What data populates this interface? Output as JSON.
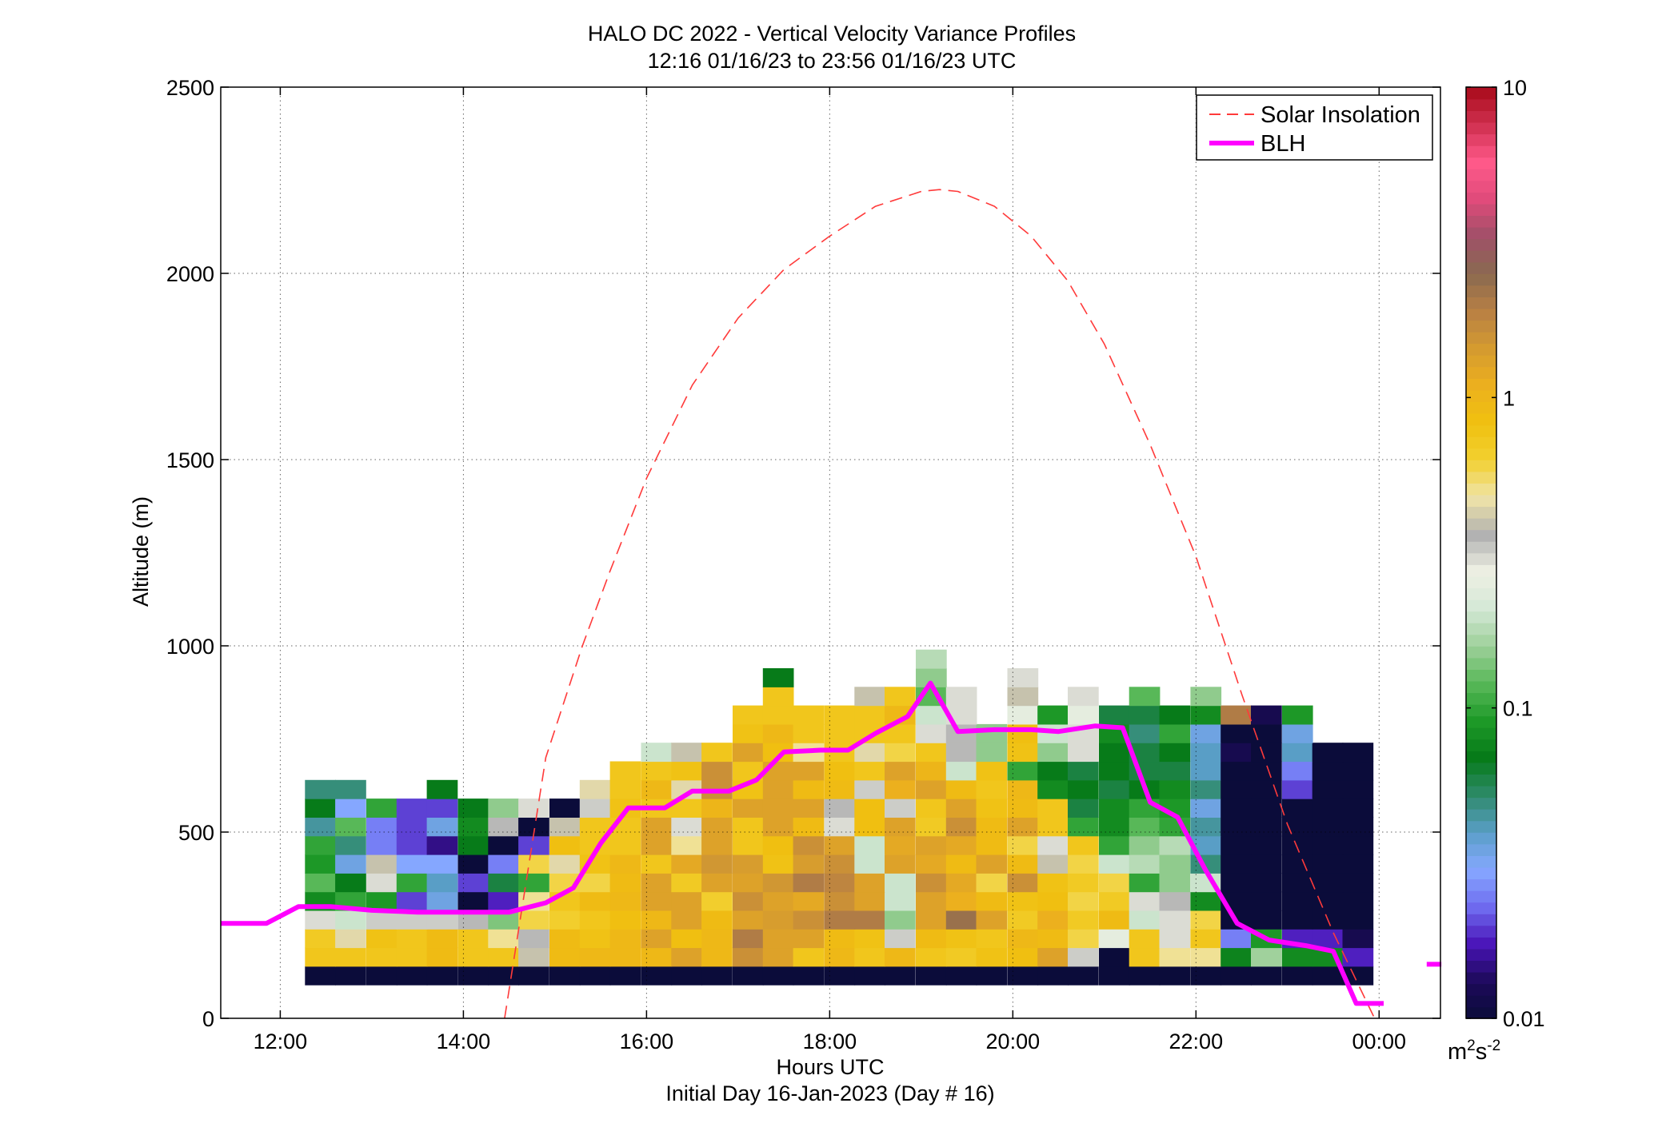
{
  "chart_data": {
    "type": "heatmap",
    "title": "HALO DC 2022 - Vertical Velocity Variance Profiles",
    "subtitle": "12:16 01/16/23 to 23:56 01/16/23  UTC",
    "xlabel": "Hours UTC",
    "xlabel2": "Initial Day 16-Jan-2023 (Day # 16)",
    "ylabel": "Altitude (m)",
    "x_unit": "hours UTC",
    "xlim": [
      11.35,
      24.67
    ],
    "ylim": [
      0,
      2500
    ],
    "x_ticks": [
      {
        "value": 12,
        "label": "12:00"
      },
      {
        "value": 14,
        "label": "14:00"
      },
      {
        "value": 16,
        "label": "16:00"
      },
      {
        "value": 18,
        "label": "18:00"
      },
      {
        "value": 20,
        "label": "20:00"
      },
      {
        "value": 22,
        "label": "22:00"
      },
      {
        "value": 24,
        "label": "00:00"
      }
    ],
    "y_ticks": [
      {
        "value": 0,
        "label": "0"
      },
      {
        "value": 500,
        "label": "500"
      },
      {
        "value": 1000,
        "label": "1000"
      },
      {
        "value": 1500,
        "label": "1500"
      },
      {
        "value": 2000,
        "label": "2000"
      },
      {
        "value": 2500,
        "label": "2500"
      }
    ],
    "grid": true,
    "legend_position": "top-right",
    "colorbar": {
      "label_base": "m",
      "label_sup1": "2",
      "label_mid": "s",
      "label_sup2": "-2",
      "scale": "log",
      "range": [
        0.01,
        10
      ],
      "ticks": [
        {
          "value": 0.01,
          "label": "0.01"
        },
        {
          "value": 0.1,
          "label": "0.1"
        },
        {
          "value": 1,
          "label": "1"
        },
        {
          "value": 10,
          "label": "10"
        }
      ],
      "colormap": [
        "#0b0c3a",
        "#1d0a5a",
        "#4a14b8",
        "#6f6cf0",
        "#86a8ff",
        "#5a9ec8",
        "#2e8a6a",
        "#067a18",
        "#1e9a28",
        "#58b858",
        "#9ed09a",
        "#d4e8d6",
        "#eef0e4",
        "#b0b0b0",
        "#f0e4a8",
        "#f2d030",
        "#f0c010",
        "#ecb01e",
        "#d49a30",
        "#b88044",
        "#8a6a50",
        "#a05068",
        "#e04a7a",
        "#ff5a8a",
        "#d03050",
        "#a80a1a"
      ]
    },
    "row_centers_m": [
      115,
      165,
      215,
      265,
      315,
      365,
      415,
      465,
      515,
      565,
      615,
      665,
      715,
      765,
      815,
      865,
      915,
      965
    ],
    "column_starts_h": [
      12.27,
      12.6,
      12.94,
      13.27,
      13.6,
      13.94,
      14.27,
      14.6,
      14.94,
      15.27,
      15.6,
      15.94,
      16.27,
      16.6,
      16.94,
      17.27,
      17.6,
      17.94,
      18.27,
      18.6,
      18.94,
      19.27,
      19.6,
      19.94,
      20.27,
      20.6,
      20.94,
      21.27,
      21.6,
      21.94,
      22.27,
      22.6,
      22.94,
      23.27,
      23.6
    ],
    "column_width_h": 0.333,
    "series": [
      {
        "name": "Solar Insolation",
        "style": "dashed",
        "color": "#ff3a3a",
        "x": [
          14.45,
          14.9,
          15.3,
          15.6,
          16.0,
          16.5,
          17.0,
          17.5,
          18.0,
          18.5,
          19.0,
          19.2,
          19.4,
          19.8,
          20.2,
          20.6,
          21.0,
          21.5,
          22.0,
          22.5,
          23.0,
          23.5,
          23.95
        ],
        "y": [
          0,
          700,
          1000,
          1200,
          1450,
          1700,
          1880,
          2010,
          2100,
          2180,
          2220,
          2225,
          2220,
          2180,
          2100,
          1980,
          1810,
          1540,
          1240,
          870,
          520,
          230,
          0
        ]
      },
      {
        "name": "BLH",
        "style": "solid",
        "color": "#ff00ff",
        "x": [
          11.35,
          11.85,
          12.2,
          12.55,
          13.0,
          13.5,
          14.0,
          14.5,
          14.9,
          15.2,
          15.5,
          15.8,
          16.2,
          16.5,
          16.9,
          17.2,
          17.5,
          17.9,
          18.2,
          18.5,
          18.85,
          19.1,
          19.4,
          19.8,
          20.2,
          20.5,
          20.9,
          21.2,
          21.5,
          21.8,
          22.1,
          22.45,
          22.8,
          23.2,
          23.5,
          23.75,
          24.05
        ],
        "y": [
          255,
          255,
          300,
          300,
          290,
          285,
          285,
          285,
          310,
          350,
          470,
          565,
          565,
          610,
          610,
          640,
          715,
          720,
          720,
          765,
          810,
          900,
          770,
          775,
          775,
          770,
          785,
          780,
          580,
          540,
          400,
          255,
          210,
          195,
          180,
          40,
          40
        ]
      }
    ],
    "extra_blh_mark": {
      "x": [
        24.52,
        24.68
      ],
      "y": [
        145,
        145
      ]
    },
    "cells": [
      [
        0.01,
        0.01,
        0.01,
        0.01,
        0.01,
        0.01,
        0.01,
        0.01,
        0.01,
        0.01,
        0.01,
        0.01,
        0.01,
        0.01,
        0.01,
        0.01,
        0.01,
        0.01,
        0.01,
        0.01,
        0.01,
        0.01,
        0.01,
        0.01,
        0.01,
        0.01,
        0.01,
        0.01,
        0.01,
        0.01,
        0.01,
        0.01,
        0.01,
        0.01,
        0.01
      ],
      [
        0.75,
        0.75,
        0.75,
        0.75,
        0.9,
        0.75,
        0.75,
        0.4,
        0.9,
        0.95,
        0.95,
        0.95,
        1.3,
        0.95,
        1.6,
        1.3,
        0.75,
        0.95,
        0.75,
        0.95,
        0.75,
        0.7,
        0.8,
        0.85,
        1.3,
        0.32,
        0.01,
        0.75,
        0.5,
        0.5,
        0.075,
        0.16,
        0.08,
        0.08,
        0.018
      ],
      [
        0.7,
        0.45,
        0.8,
        0.75,
        0.9,
        0.75,
        0.5,
        0.35,
        0.9,
        0.8,
        0.95,
        1.3,
        0.85,
        0.95,
        2.0,
        1.3,
        1.3,
        0.9,
        0.8,
        0.32,
        0.9,
        0.8,
        0.75,
        0.95,
        0.9,
        0.6,
        0.25,
        0.75,
        0.3,
        0.75,
        0.025,
        0.09,
        0.018,
        0.018,
        0.012
      ],
      [
        0.3,
        0.2,
        0.32,
        0.32,
        0.32,
        0.35,
        0.14,
        0.6,
        0.65,
        0.75,
        0.85,
        0.95,
        1.3,
        0.9,
        1.3,
        1.4,
        1.6,
        2.0,
        2.0,
        0.15,
        1.3,
        2.3,
        1.3,
        0.7,
        1.1,
        0.7,
        0.9,
        0.2,
        0.3,
        0.6,
        0.01,
        0.01,
        0.01,
        0.01,
        0.01
      ],
      [
        0.08,
        0.1,
        0.09,
        0.02,
        0.035,
        0.01,
        0.018,
        0.5,
        0.75,
        0.9,
        0.95,
        1.3,
        1.3,
        0.65,
        1.6,
        1.3,
        1.2,
        1.6,
        1.3,
        0.2,
        1.3,
        1.1,
        0.9,
        0.8,
        0.85,
        0.6,
        0.7,
        0.3,
        0.35,
        0.08,
        0.01,
        0.01,
        0.01,
        0.01,
        0.01
      ],
      [
        0.12,
        0.07,
        0.3,
        0.1,
        0.04,
        0.02,
        0.06,
        0.1,
        0.6,
        0.6,
        0.9,
        1.3,
        0.7,
        1.3,
        1.3,
        1.5,
        2.0,
        1.8,
        1.3,
        0.2,
        1.6,
        1.2,
        0.6,
        1.6,
        0.8,
        0.7,
        0.6,
        0.1,
        0.15,
        0.2,
        0.01,
        0.01,
        0.01,
        0.01,
        0.01
      ],
      [
        0.09,
        0.035,
        0.4,
        0.03,
        0.03,
        0.01,
        0.025,
        0.6,
        0.45,
        0.8,
        0.95,
        0.75,
        1.2,
        1.5,
        1.4,
        0.8,
        1.4,
        1.6,
        0.2,
        1.3,
        1.2,
        0.9,
        1.3,
        0.9,
        0.4,
        0.6,
        0.2,
        0.18,
        0.15,
        0.05,
        0.01,
        0.01,
        0.01,
        0.01,
        0.01
      ],
      [
        0.1,
        0.05,
        0.025,
        0.02,
        0.015,
        0.07,
        0.01,
        0.02,
        0.85,
        0.75,
        0.75,
        1.3,
        0.5,
        1.3,
        0.75,
        0.85,
        1.6,
        1.3,
        0.2,
        1.2,
        1.3,
        1.2,
        0.9,
        0.6,
        0.3,
        0.75,
        0.1,
        0.15,
        0.18,
        0.04,
        0.01,
        0.01,
        0.01,
        0.01,
        0.01
      ],
      [
        0.045,
        0.12,
        0.025,
        0.02,
        0.035,
        0.08,
        0.35,
        0.01,
        0.4,
        0.75,
        0.75,
        1.3,
        0.3,
        1.3,
        0.75,
        1.3,
        0.9,
        0.3,
        0.85,
        1.3,
        0.7,
        1.6,
        0.9,
        1.3,
        0.75,
        0.1,
        0.08,
        0.12,
        0.1,
        0.045,
        0.01,
        0.01,
        0.01,
        0.01,
        0.01
      ],
      [
        0.07,
        0.03,
        0.1,
        0.02,
        0.02,
        0.07,
        0.15,
        0.3,
        0.01,
        0.32,
        0.8,
        0.75,
        0.75,
        1.0,
        1.3,
        1.3,
        1.3,
        0.35,
        0.85,
        0.32,
        0.75,
        1.3,
        0.8,
        0.9,
        0.75,
        0.06,
        0.08,
        0.1,
        0.09,
        0.035,
        0.01,
        0.01,
        0.01,
        0.01,
        0.01
      ],
      [
        0.05,
        0.05,
        null,
        null,
        0.07,
        null,
        null,
        null,
        null,
        0.45,
        0.75,
        0.95,
        0.45,
        1.6,
        0.8,
        1.3,
        0.9,
        0.9,
        0.32,
        1.1,
        1.3,
        0.9,
        0.75,
        0.95,
        0.08,
        0.07,
        0.06,
        0.07,
        0.08,
        0.05,
        0.01,
        0.01,
        0.02,
        0.01,
        0.01
      ],
      [
        null,
        null,
        null,
        null,
        null,
        null,
        null,
        null,
        null,
        null,
        0.75,
        0.75,
        0.8,
        1.6,
        0.75,
        1.3,
        1.3,
        0.85,
        0.75,
        1.3,
        1.0,
        0.2,
        0.8,
        0.1,
        0.07,
        0.06,
        0.07,
        0.06,
        0.06,
        0.04,
        0.01,
        0.01,
        0.025,
        0.01,
        0.01
      ],
      [
        null,
        null,
        null,
        null,
        null,
        null,
        null,
        null,
        null,
        null,
        null,
        0.2,
        0.4,
        0.75,
        1.3,
        0.85,
        0.5,
        0.75,
        0.45,
        0.6,
        0.75,
        0.35,
        0.15,
        0.8,
        0.15,
        0.3,
        0.07,
        0.06,
        0.07,
        0.04,
        0.012,
        0.01,
        0.04,
        0.01,
        0.01
      ],
      [
        null,
        null,
        null,
        null,
        null,
        null,
        null,
        null,
        null,
        null,
        null,
        null,
        null,
        null,
        0.8,
        0.95,
        0.75,
        0.75,
        0.75,
        0.75,
        0.3,
        0.35,
        0.15,
        0.85,
        0.2,
        0.3,
        0.08,
        0.05,
        0.1,
        0.035,
        0.01,
        0.01,
        0.035,
        null,
        null
      ],
      [
        null,
        null,
        null,
        null,
        null,
        null,
        null,
        null,
        null,
        null,
        null,
        null,
        null,
        null,
        0.75,
        0.75,
        0.75,
        0.75,
        0.75,
        0.95,
        0.2,
        0.3,
        null,
        0.25,
        0.09,
        0.25,
        0.06,
        0.06,
        0.07,
        0.08,
        2.0,
        0.012,
        0.09,
        null,
        null
      ],
      [
        null,
        null,
        null,
        null,
        null,
        null,
        null,
        null,
        null,
        null,
        null,
        null,
        null,
        null,
        null,
        0.75,
        null,
        null,
        0.4,
        0.75,
        0.12,
        0.3,
        null,
        0.4,
        null,
        0.3,
        null,
        0.12,
        null,
        0.15,
        null,
        null,
        null,
        null,
        null
      ],
      [
        null,
        null,
        null,
        null,
        null,
        null,
        null,
        null,
        null,
        null,
        null,
        null,
        null,
        null,
        null,
        0.07,
        null,
        null,
        null,
        null,
        0.15,
        null,
        null,
        0.3,
        null,
        null,
        null,
        null,
        null,
        null,
        null,
        null,
        null,
        null,
        null
      ],
      [
        null,
        null,
        null,
        null,
        null,
        null,
        null,
        null,
        null,
        null,
        null,
        null,
        null,
        null,
        null,
        null,
        null,
        null,
        null,
        null,
        0.18,
        null,
        null,
        null,
        null,
        null,
        null,
        null,
        null,
        null,
        null,
        null,
        null,
        null,
        null
      ]
    ]
  }
}
